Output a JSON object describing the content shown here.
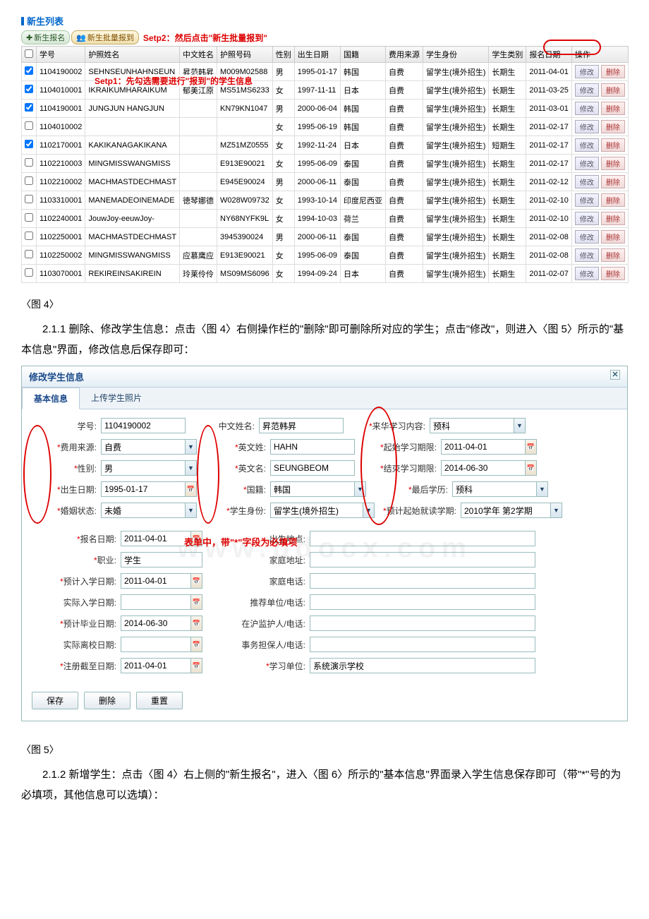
{
  "list": {
    "title": "新生列表",
    "btn_signup": "新生报名",
    "btn_batch": "新生批量报到",
    "step2": "Setp2：然后点击\"新生批量报到\"",
    "step1": "Setp1：先勾选需要进行\"报到\"的学生信息",
    "cols": [
      "学号",
      "护照姓名",
      "中文姓名",
      "护照号码",
      "性别",
      "出生日期",
      "国籍",
      "费用来源",
      "学生身份",
      "学生类别",
      "报名日期",
      "操作"
    ],
    "op_edit": "修改",
    "op_del": "删除",
    "rows": [
      {
        "ck": true,
        "c": [
          "1104190002",
          "SEHNSEUNHAHNSEUN",
          "昇范韩昇",
          "M009M02588",
          "男",
          "1995-01-17",
          "韩国",
          "自费",
          "留学生(境外招生)",
          "长期生",
          "2011-04-01"
        ]
      },
      {
        "ck": true,
        "c": [
          "1104010001",
          "IKRAIKUMHARAIKUM",
          "郁美江原",
          "MS51MS6233",
          "女",
          "1997-11-11",
          "日本",
          "自费",
          "留学生(境外招生)",
          "长期生",
          "2011-03-25"
        ]
      },
      {
        "ck": true,
        "c": [
          "1104190001",
          "JUNGJUN HANGJUN",
          "",
          "KN79KN1047",
          "男",
          "2000-06-04",
          "韩国",
          "自费",
          "留学生(境外招生)",
          "长期生",
          "2011-03-01"
        ]
      },
      {
        "ck": false,
        "c": [
          "1104010002",
          "",
          "",
          "",
          "女",
          "1995-06-19",
          "韩国",
          "自费",
          "留学生(境外招生)",
          "长期生",
          "2011-02-17"
        ]
      },
      {
        "ck": true,
        "c": [
          "1102170001",
          "KAKIKANAGAKIKANA",
          "",
          "MZ51MZ0555",
          "女",
          "1992-11-24",
          "日本",
          "自费",
          "留学生(境外招生)",
          "短期生",
          "2011-02-17"
        ]
      },
      {
        "ck": false,
        "c": [
          "1102210003",
          "MINGMISSWANGMISS",
          "",
          "E913E90021",
          "女",
          "1995-06-09",
          "泰国",
          "自费",
          "留学生(境外招生)",
          "长期生",
          "2011-02-17"
        ]
      },
      {
        "ck": false,
        "c": [
          "1102210002",
          "MACHMASTDECHMAST",
          "",
          "E945E90024",
          "男",
          "2000-06-11",
          "泰国",
          "自费",
          "留学生(境外招生)",
          "长期生",
          "2011-02-12"
        ]
      },
      {
        "ck": false,
        "c": [
          "1103310001",
          "MANEMADEOINEMADE",
          "徳琴娜德",
          "W028W09732",
          "女",
          "1993-10-14",
          "印度尼西亚",
          "自费",
          "留学生(境外招生)",
          "长期生",
          "2011-02-10"
        ]
      },
      {
        "ck": false,
        "c": [
          "1102240001",
          "JouwJoy-eeuwJoy-",
          "",
          "NY68NYFK9L",
          "女",
          "1994-10-03",
          "荷兰",
          "自费",
          "留学生(境外招生)",
          "长期生",
          "2011-02-10"
        ]
      },
      {
        "ck": false,
        "c": [
          "1102250001",
          "MACHMASTDECHMAST",
          "",
          "3945390024",
          "男",
          "2000-06-11",
          "泰国",
          "自费",
          "留学生(境外招生)",
          "长期生",
          "2011-02-08"
        ]
      },
      {
        "ck": false,
        "c": [
          "1102250002",
          "MINGMISSWANGMISS",
          "应慕鹰应",
          "E913E90021",
          "女",
          "1995-06-09",
          "泰国",
          "自费",
          "留学生(境外招生)",
          "长期生",
          "2011-02-08"
        ]
      },
      {
        "ck": false,
        "c": [
          "1103070001",
          "REKIREINSAKIREIN",
          "玲莱伶伶",
          "MS09MS6096",
          "女",
          "1994-09-24",
          "日本",
          "自费",
          "留学生(境外招生)",
          "长期生",
          "2011-02-07"
        ]
      }
    ]
  },
  "fig4": "〈图 4〉",
  "para1": "2.1.1 删除、修改学生信息：点击〈图 4〉右侧操作栏的\"删除\"即可删除所对应的学生；点击\"修改\"，则进入〈图 5〉所示的\"基本信息\"界面，修改信息后保存即可：",
  "dlg": {
    "title": "修改学生信息",
    "tab1": "基本信息",
    "tab2": "上传学生照片",
    "f": {
      "sid_l": "学号:",
      "sid": "1104190002",
      "cn_l": "中文姓名:",
      "cn": "昇范韩昇",
      "topic_l": "来华学习内容:",
      "topic": "预科",
      "src_l": "费用来源:",
      "src": "自费",
      "ens_l": "英文姓:",
      "ens": "HAHN",
      "start_l": "起始学习期限:",
      "start": "2011-04-01",
      "sex_l": "性别:",
      "sex": "男",
      "enn_l": "英文名:",
      "enn": "SEUNGBEOM",
      "end_l": "结束学习期限:",
      "end": "2014-06-30",
      "dob_l": "出生日期:",
      "dob": "1995-01-17",
      "nat_l": "国籍:",
      "nat": "韩国",
      "edu_l": "最后学历:",
      "edu": "预科",
      "mar_l": "婚姻状态:",
      "mar": "未婚",
      "idn_l": "学生身份:",
      "idn": "留学生(境外招生)",
      "term_l": "预计起始就读学期:",
      "term": "2010学年 第2学期",
      "regd_l": "报名日期:",
      "regd": "2011-04-01",
      "bp_l": "出生地点:",
      "job_l": "职业:",
      "job": "学生",
      "addr_l": "家庭地址:",
      "pin_l": "预计入学日期:",
      "pin": "2011-04-01",
      "tel_l": "家庭电话:",
      "ain_l": "实际入学日期:",
      "rec_l": "推荐单位/电话:",
      "pgr_l": "预计毕业日期:",
      "pgr": "2014-06-30",
      "grd_l": "在沪监护人/电话:",
      "aot_l": "实际离校日期:",
      "sur_l": "事务担保人/电话:",
      "rtl_l": "注册截至日期:",
      "rtl": "2011-04-01",
      "unit_l": "学习单位:",
      "unit": "系统演示学校"
    },
    "note": "表单中，带\"*\"字段为必填项",
    "save": "保存",
    "del": "删除",
    "reset": "重置"
  },
  "fig5": "〈图 5〉",
  "para2": "2.1.2 新增学生：点击〈图 4〉右上侧的\"新生报名\"，进入〈图 6〉所示的\"基本信息\"界面录入学生信息保存即可（带\"*\"号的为必填项，其他信息可以选填）："
}
